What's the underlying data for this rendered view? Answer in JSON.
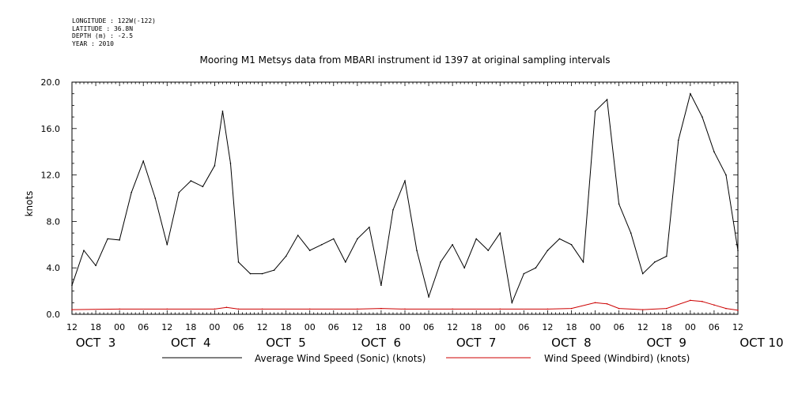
{
  "meta": {
    "longitude": "LONGITUDE : 122W(-122)",
    "latitude": "LATITUDE : 36.8N",
    "depth": "DEPTH (m) : -2.5",
    "year": "YEAR : 2010"
  },
  "chart_data": {
    "type": "line",
    "title": "Mooring M1 Metsys data from MBARI instrument id 1397 at original sampling intervals",
    "ylabel": "knots",
    "xlabel": "",
    "xlim": [
      "2010-10-03 12:00",
      "2010-10-10 12:00"
    ],
    "ylim": [
      0,
      20
    ],
    "yticks": [
      "0.0",
      "4.0",
      "8.0",
      "12.0",
      "16.0",
      "20.0"
    ],
    "x_hour_ticks": [
      "12",
      "18",
      "00",
      "06",
      "12",
      "18",
      "00",
      "06",
      "12",
      "18",
      "00",
      "06",
      "12",
      "18",
      "00",
      "06",
      "12",
      "18",
      "00",
      "06",
      "12",
      "18",
      "00",
      "06",
      "12",
      "18",
      "00",
      "06",
      "12"
    ],
    "day_labels": [
      {
        "label": "OCT  3",
        "x": "2010-10-03 12:00"
      },
      {
        "label": "OCT  4",
        "x": "2010-10-04 12:00"
      },
      {
        "label": "OCT  5",
        "x": "2010-10-05 12:00"
      },
      {
        "label": "OCT  6",
        "x": "2010-10-06 12:00"
      },
      {
        "label": "OCT  7",
        "x": "2010-10-07 12:00"
      },
      {
        "label": "OCT  8",
        "x": "2010-10-08 12:00"
      },
      {
        "label": "OCT  9",
        "x": "2010-10-09 12:00"
      },
      {
        "label": "OCT 10",
        "x": "2010-10-10 12:00"
      }
    ],
    "grid": false,
    "legend_position": "bottom",
    "series": [
      {
        "name": "Average Wind Speed (Sonic) (knots)",
        "color": "#000000",
        "x": [
          "2010-10-03 12:00",
          "2010-10-03 15:00",
          "2010-10-03 18:00",
          "2010-10-03 21:00",
          "2010-10-04 00:00",
          "2010-10-04 03:00",
          "2010-10-04 06:00",
          "2010-10-04 09:00",
          "2010-10-04 12:00",
          "2010-10-04 15:00",
          "2010-10-04 18:00",
          "2010-10-04 21:00",
          "2010-10-05 00:00",
          "2010-10-05 02:00",
          "2010-10-05 04:00",
          "2010-10-05 06:00",
          "2010-10-05 09:00",
          "2010-10-05 12:00",
          "2010-10-05 15:00",
          "2010-10-05 18:00",
          "2010-10-05 21:00",
          "2010-10-06 00:00",
          "2010-10-06 03:00",
          "2010-10-06 06:00",
          "2010-10-06 09:00",
          "2010-10-06 12:00",
          "2010-10-06 15:00",
          "2010-10-06 18:00",
          "2010-10-06 21:00",
          "2010-10-07 00:00",
          "2010-10-07 03:00",
          "2010-10-07 06:00",
          "2010-10-07 09:00",
          "2010-10-07 12:00",
          "2010-10-07 15:00",
          "2010-10-07 18:00",
          "2010-10-07 21:00",
          "2010-10-08 00:00",
          "2010-10-08 03:00",
          "2010-10-08 06:00",
          "2010-10-08 09:00",
          "2010-10-08 12:00",
          "2010-10-08 15:00",
          "2010-10-08 18:00",
          "2010-10-08 21:00",
          "2010-10-09 00:00",
          "2010-10-09 03:00",
          "2010-10-09 06:00",
          "2010-10-09 09:00",
          "2010-10-09 12:00",
          "2010-10-09 15:00",
          "2010-10-09 18:00",
          "2010-10-09 21:00",
          "2010-10-10 00:00",
          "2010-10-10 03:00",
          "2010-10-10 06:00",
          "2010-10-10 09:00",
          "2010-10-10 12:00"
        ],
        "values": [
          2.5,
          5.5,
          4.2,
          6.5,
          6.4,
          10.5,
          13.2,
          10.0,
          6.0,
          10.5,
          11.5,
          11.0,
          12.8,
          17.5,
          13.0,
          4.5,
          3.5,
          3.5,
          3.8,
          5.0,
          6.8,
          5.5,
          6.0,
          6.5,
          4.5,
          6.5,
          7.5,
          2.5,
          9.0,
          11.5,
          5.5,
          1.5,
          4.5,
          6.0,
          4.0,
          6.5,
          5.5,
          7.0,
          1.0,
          3.5,
          4.0,
          5.5,
          6.5,
          6.0,
          4.5,
          17.5,
          18.5,
          9.5,
          7.0,
          3.5,
          4.5,
          5.0,
          15.0,
          19.0,
          17.0,
          14.0,
          12.0,
          5.5
        ]
      },
      {
        "name": "Wind Speed (Windbird) (knots)",
        "color": "#cc0000",
        "x": [
          "2010-10-03 12:00",
          "2010-10-04 00:00",
          "2010-10-04 12:00",
          "2010-10-05 00:00",
          "2010-10-05 03:00",
          "2010-10-05 06:00",
          "2010-10-05 12:00",
          "2010-10-06 00:00",
          "2010-10-06 12:00",
          "2010-10-06 18:00",
          "2010-10-07 00:00",
          "2010-10-07 12:00",
          "2010-10-08 00:00",
          "2010-10-08 12:00",
          "2010-10-08 18:00",
          "2010-10-09 00:00",
          "2010-10-09 03:00",
          "2010-10-09 06:00",
          "2010-10-09 12:00",
          "2010-10-09 18:00",
          "2010-10-10 00:00",
          "2010-10-10 03:00",
          "2010-10-10 06:00",
          "2010-10-10 09:00",
          "2010-10-10 12:00"
        ],
        "values": [
          0.4,
          0.45,
          0.45,
          0.45,
          0.6,
          0.45,
          0.45,
          0.45,
          0.45,
          0.5,
          0.45,
          0.45,
          0.45,
          0.45,
          0.5,
          1.0,
          0.9,
          0.5,
          0.4,
          0.5,
          1.2,
          1.1,
          0.8,
          0.5,
          0.35
        ]
      }
    ]
  }
}
